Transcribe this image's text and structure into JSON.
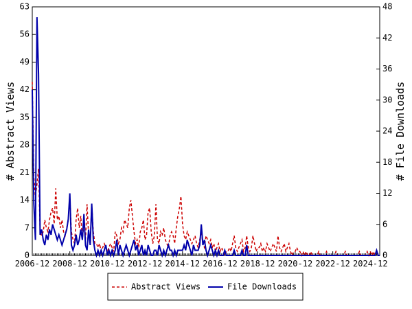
{
  "chart_data": {
    "type": "line",
    "ylabel": "# Abstract Views",
    "y2label": "# File Downloads",
    "x": [
      "2006-12",
      "2007-01",
      "2007-02",
      "2007-03",
      "2007-04",
      "2007-05",
      "2007-06",
      "2007-07",
      "2007-08",
      "2007-09",
      "2007-10",
      "2007-11",
      "2007-12",
      "2008-01",
      "2008-02",
      "2008-03",
      "2008-04",
      "2008-05",
      "2008-06",
      "2008-07",
      "2008-08",
      "2008-09",
      "2008-10",
      "2008-11",
      "2008-12",
      "2009-01",
      "2009-02",
      "2009-03",
      "2009-04",
      "2009-05",
      "2009-06",
      "2009-07",
      "2009-08",
      "2009-09",
      "2009-10",
      "2009-11",
      "2009-12",
      "2010-01",
      "2010-02",
      "2010-03",
      "2010-04",
      "2010-05",
      "2010-06",
      "2010-07",
      "2010-08",
      "2010-09",
      "2010-10",
      "2010-11",
      "2010-12",
      "2011-01",
      "2011-02",
      "2011-03",
      "2011-04",
      "2011-05",
      "2011-06",
      "2011-07",
      "2011-08",
      "2011-09",
      "2011-10",
      "2011-11",
      "2011-12",
      "2012-01",
      "2012-02",
      "2012-03",
      "2012-04",
      "2012-05",
      "2012-06",
      "2012-07",
      "2012-08",
      "2012-09",
      "2012-10",
      "2012-11",
      "2012-12",
      "2013-01",
      "2013-02",
      "2013-03",
      "2013-04",
      "2013-05",
      "2013-06",
      "2013-07",
      "2013-08",
      "2013-09",
      "2013-10",
      "2013-11",
      "2013-12",
      "2014-01",
      "2014-02",
      "2014-03",
      "2014-04",
      "2014-05",
      "2014-06",
      "2014-07",
      "2014-08",
      "2014-09",
      "2014-10",
      "2014-11",
      "2014-12",
      "2015-01",
      "2015-02",
      "2015-03",
      "2015-04",
      "2015-05",
      "2015-06",
      "2015-07",
      "2015-08",
      "2015-09",
      "2015-10",
      "2015-11",
      "2015-12",
      "2016-01",
      "2016-02",
      "2016-03",
      "2016-04",
      "2016-05",
      "2016-06",
      "2016-07",
      "2016-08",
      "2016-09",
      "2016-10",
      "2016-11",
      "2016-12",
      "2017-01",
      "2017-02",
      "2017-03",
      "2017-04",
      "2017-05",
      "2017-06",
      "2017-07",
      "2017-08",
      "2017-09",
      "2017-10",
      "2017-11",
      "2017-12",
      "2018-01",
      "2018-02",
      "2018-03",
      "2018-04",
      "2018-05",
      "2018-06",
      "2018-07",
      "2018-08",
      "2018-09",
      "2018-10",
      "2018-11",
      "2018-12",
      "2019-01",
      "2019-02",
      "2019-03",
      "2019-04",
      "2019-05",
      "2019-06",
      "2019-07",
      "2019-08",
      "2019-09",
      "2019-10",
      "2019-11",
      "2019-12",
      "2020-01",
      "2020-02",
      "2020-03",
      "2020-04",
      "2020-05",
      "2020-06",
      "2020-07",
      "2020-08",
      "2020-09",
      "2020-10",
      "2020-11",
      "2020-12",
      "2021-01",
      "2021-02",
      "2021-03",
      "2021-04",
      "2021-05",
      "2021-06",
      "2021-07",
      "2021-08",
      "2021-09",
      "2021-10",
      "2021-11",
      "2021-12",
      "2022-01",
      "2022-02",
      "2022-03",
      "2022-04",
      "2022-05",
      "2022-06",
      "2022-07",
      "2022-08",
      "2022-09",
      "2022-10",
      "2022-11",
      "2022-12",
      "2023-01",
      "2023-02",
      "2023-03",
      "2023-04",
      "2023-05",
      "2023-06",
      "2023-07",
      "2023-08",
      "2023-09",
      "2023-10",
      "2023-11",
      "2023-12",
      "2024-01",
      "2024-02",
      "2024-03",
      "2024-04",
      "2024-05",
      "2024-06",
      "2024-07",
      "2024-08",
      "2024-09",
      "2024-10",
      "2024-11",
      "2024-12",
      "2025-01",
      "2025-02",
      "2025-03",
      "2025-04",
      "2025-05",
      "2025-06"
    ],
    "xticks": [
      "2006-12",
      "2008-12",
      "2010-12",
      "2012-12",
      "2014-12",
      "2016-12",
      "2018-12",
      "2020-12",
      "2022-12",
      "2024-12"
    ],
    "ylim": [
      0,
      63
    ],
    "yticks": [
      0,
      7,
      14,
      21,
      28,
      35,
      42,
      49,
      56,
      63
    ],
    "y2lim": [
      0,
      48
    ],
    "y2ticks": [
      0,
      6,
      12,
      18,
      24,
      30,
      36,
      42,
      48
    ],
    "series": [
      {
        "name": "Abstract Views",
        "color": "#cc0000",
        "dash": true,
        "values": [
          44,
          20,
          15,
          18,
          22,
          6,
          5,
          6,
          9,
          7,
          6,
          9,
          11,
          12,
          8,
          17,
          9,
          10,
          7,
          9,
          6,
          5,
          7,
          9,
          15,
          6,
          4,
          3,
          9,
          12,
          7,
          10,
          4,
          8,
          4,
          13,
          5,
          4,
          13,
          6,
          3,
          3,
          2,
          3,
          1,
          2,
          3,
          2,
          1,
          2,
          3,
          2,
          1,
          6,
          5,
          3,
          4,
          7,
          6,
          9,
          8,
          7,
          12,
          14,
          10,
          6,
          3,
          4,
          2,
          6,
          7,
          9,
          4,
          5,
          11,
          12,
          6,
          3,
          5,
          13,
          4,
          3,
          6,
          5,
          7,
          4,
          3,
          2,
          5,
          6,
          5,
          3,
          7,
          10,
          12,
          15,
          8,
          5,
          4,
          6,
          5,
          4,
          3,
          4,
          5,
          3,
          2,
          4,
          6,
          3,
          2,
          5,
          4,
          3,
          4,
          2,
          3,
          1,
          2,
          3,
          1,
          2,
          1,
          0,
          1,
          1,
          2,
          1,
          3,
          5,
          2,
          1,
          2,
          3,
          4,
          1,
          2,
          5,
          2,
          1,
          2,
          5,
          3,
          1,
          2,
          2,
          3,
          1,
          2,
          1,
          3,
          2,
          1,
          2,
          3,
          2,
          1,
          5,
          2,
          1,
          2,
          3,
          1,
          2,
          3,
          1,
          0,
          1,
          1,
          2,
          1,
          1,
          0,
          1,
          0,
          1,
          0,
          0,
          1,
          0,
          0,
          0,
          0,
          1,
          0,
          0,
          0,
          0,
          1,
          0,
          0,
          0,
          0,
          0,
          1,
          0,
          0,
          0,
          0,
          0,
          1,
          0,
          0,
          0,
          0,
          0,
          0,
          0,
          0,
          1,
          0,
          0,
          0,
          0,
          1,
          0,
          1,
          0,
          1,
          0,
          1,
          0,
          0
        ]
      },
      {
        "name": "File Downloads",
        "color": "#0000aa",
        "axis": "y2",
        "values": [
          32,
          10,
          3,
          46,
          35,
          4,
          5,
          3,
          2,
          4,
          3,
          5,
          4,
          6,
          5,
          4,
          3,
          4,
          3,
          2,
          3,
          4,
          5,
          7,
          12,
          2,
          1,
          2,
          4,
          2,
          3,
          5,
          3,
          8,
          2,
          1,
          5,
          2,
          10,
          3,
          1,
          0,
          1,
          0,
          1,
          0,
          1,
          2,
          0,
          1,
          0,
          1,
          0,
          1,
          3,
          0,
          2,
          1,
          0,
          1,
          2,
          1,
          0,
          1,
          2,
          3,
          1,
          2,
          0,
          1,
          2,
          0,
          1,
          0,
          2,
          1,
          0,
          0,
          1,
          1,
          0,
          2,
          1,
          0,
          1,
          0,
          1,
          2,
          1,
          1,
          0,
          1,
          0,
          1,
          1,
          1,
          1,
          2,
          1,
          3,
          2,
          1,
          0,
          2,
          1,
          1,
          1,
          2,
          6,
          2,
          3,
          1,
          0,
          1,
          2,
          1,
          0,
          1,
          0,
          1,
          0,
          0,
          0,
          1,
          0,
          0,
          0,
          0,
          0,
          1,
          0,
          0,
          0,
          0,
          1,
          0,
          0,
          2,
          0,
          0,
          0,
          0,
          0,
          0,
          0,
          0,
          0,
          0,
          0,
          0,
          0,
          0,
          0,
          0,
          0,
          0,
          0,
          0,
          0,
          0,
          0,
          0,
          0,
          0,
          0,
          0,
          0,
          0,
          0,
          0,
          0,
          0,
          0,
          0,
          0,
          0,
          0,
          0,
          0,
          0,
          0,
          0,
          0,
          0,
          0,
          0,
          0,
          0,
          0,
          0,
          0,
          0,
          0,
          0,
          0,
          0,
          0,
          0,
          0,
          0,
          0,
          0,
          0,
          0,
          0,
          0,
          0,
          0,
          0,
          0,
          0,
          0,
          0,
          0,
          0,
          0,
          0,
          0,
          0,
          0,
          1,
          0,
          0
        ]
      }
    ]
  }
}
